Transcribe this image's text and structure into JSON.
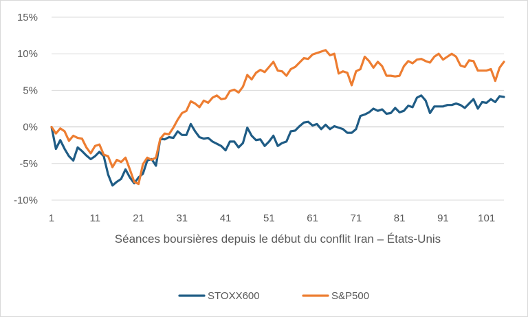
{
  "chart_data": {
    "type": "line",
    "title": "",
    "xlabel": "Séances boursières depuis le début du conflit Iran – États-Unis",
    "ylabel": "",
    "xlim": [
      1,
      105
    ],
    "ylim": [
      -10,
      15
    ],
    "x_ticks": [
      1,
      11,
      21,
      31,
      41,
      51,
      61,
      71,
      81,
      91,
      101
    ],
    "y_ticks": [
      {
        "value": 15,
        "label": "15%"
      },
      {
        "value": 10,
        "label": "10%"
      },
      {
        "value": 5,
        "label": "5%"
      },
      {
        "value": 0,
        "label": "0%"
      },
      {
        "value": -5,
        "label": "-5%"
      },
      {
        "value": -10,
        "label": "-10%"
      }
    ],
    "grid": "horizontal",
    "legend_position": "bottom",
    "series": [
      {
        "name": "STOXX600",
        "color": "#1f5c85",
        "values": [
          0.0,
          -3.0,
          -1.8,
          -3.0,
          -4.0,
          -4.6,
          -2.8,
          -3.3,
          -3.9,
          -4.4,
          -4.0,
          -3.4,
          -4.0,
          -6.5,
          -8.0,
          -7.5,
          -7.1,
          -5.8,
          -6.9,
          -7.7,
          -6.9,
          -6.4,
          -4.6,
          -4.4,
          -5.3,
          -1.6,
          -1.7,
          -1.4,
          -1.5,
          -0.6,
          -1.1,
          -1.1,
          0.4,
          -0.6,
          -1.4,
          -1.6,
          -1.5,
          -2.0,
          -2.3,
          -2.6,
          -3.2,
          -2.0,
          -2.0,
          -2.8,
          -2.2,
          -0.1,
          -1.2,
          -1.8,
          -1.7,
          -2.6,
          -2.0,
          -1.2,
          -2.6,
          -2.2,
          -2.0,
          -0.6,
          -0.5,
          0.1,
          0.6,
          0.7,
          0.2,
          0.4,
          -0.3,
          0.3,
          -0.3,
          0.1,
          -0.1,
          -0.3,
          -0.8,
          -0.8,
          -0.3,
          1.5,
          1.7,
          2.0,
          2.5,
          2.2,
          2.4,
          1.8,
          1.9,
          2.6,
          2.0,
          2.2,
          2.9,
          2.7,
          4.0,
          4.3,
          3.6,
          1.9,
          2.8,
          2.8,
          2.8,
          3.0,
          3.0,
          3.2,
          3.0,
          2.6,
          3.2,
          3.8,
          2.5,
          3.4,
          3.3,
          3.8,
          3.4,
          4.2,
          4.1
        ]
      },
      {
        "name": "S&P500",
        "color": "#ed7d31",
        "values": [
          0.0,
          -0.9,
          -0.2,
          -0.6,
          -1.9,
          -1.2,
          -1.5,
          -1.6,
          -2.8,
          -3.6,
          -2.6,
          -2.4,
          -3.8,
          -4.0,
          -5.5,
          -4.5,
          -4.8,
          -4.2,
          -5.8,
          -7.5,
          -7.8,
          -5.1,
          -4.2,
          -4.5,
          -4.2,
          -1.6,
          -0.9,
          -1.0,
          -0.1,
          1.0,
          1.9,
          2.2,
          3.5,
          3.2,
          2.7,
          3.6,
          3.3,
          4.0,
          4.3,
          3.8,
          3.9,
          4.9,
          5.1,
          4.7,
          5.5,
          7.1,
          6.5,
          7.4,
          7.8,
          7.5,
          8.2,
          8.9,
          7.7,
          7.6,
          7.0,
          7.9,
          8.2,
          8.8,
          9.4,
          9.3,
          9.9,
          10.1,
          10.3,
          10.5,
          9.8,
          10.0,
          7.3,
          7.6,
          7.4,
          5.7,
          7.6,
          7.9,
          9.6,
          9.0,
          8.1,
          8.9,
          8.3,
          7.0,
          7.0,
          6.9,
          7.0,
          8.3,
          9.0,
          8.7,
          9.2,
          9.3,
          9.0,
          8.8,
          9.6,
          10.0,
          9.2,
          9.6,
          10.0,
          9.6,
          8.4,
          8.2,
          9.1,
          9.0,
          7.7,
          7.7,
          7.7,
          7.9,
          6.3,
          8.1,
          8.9
        ]
      }
    ]
  }
}
